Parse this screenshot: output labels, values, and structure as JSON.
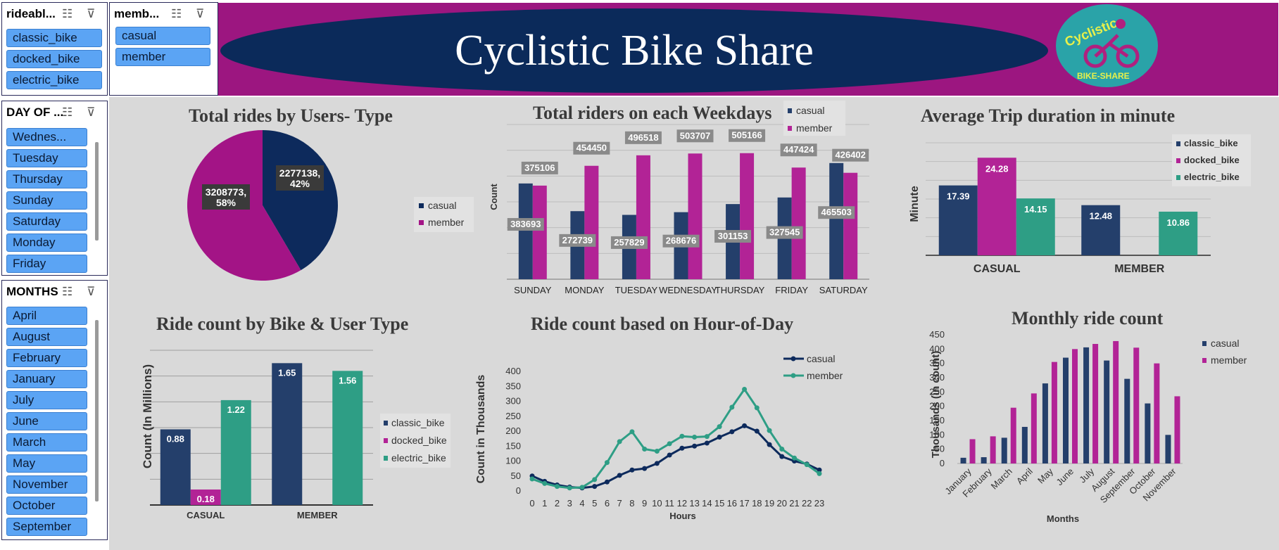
{
  "header": {
    "title": "Cyclistic Bike Share",
    "logo_top": "Cyclistic",
    "logo_bottom": "BIKE-SHARE"
  },
  "slicers": {
    "rideable": {
      "title": "rideabl...",
      "items": [
        "classic_bike",
        "docked_bike",
        "electric_bike"
      ]
    },
    "member": {
      "title": "memb...",
      "items": [
        "casual",
        "member"
      ]
    },
    "day": {
      "title": "DAY OF ...",
      "items": [
        "Wednes...",
        "Tuesday",
        "Thursday",
        "Sunday",
        "Saturday",
        "Monday",
        "Friday"
      ]
    },
    "months": {
      "title": "MONTHS",
      "items": [
        "April",
        "August",
        "February",
        "January",
        "July",
        "June",
        "March",
        "May",
        "November",
        "October",
        "September"
      ]
    }
  },
  "colors": {
    "navy": "#243f6b",
    "magenta": "#b22396",
    "teal": "#2e9e85"
  },
  "chart_data": [
    {
      "type": "pie",
      "title": "Total rides by Users- Type",
      "slices": [
        {
          "name": "casual",
          "value": 2277138,
          "label": "2277138, 42%"
        },
        {
          "name": "member",
          "value": 3208773,
          "label": "3208773, 58%"
        }
      ],
      "legend": [
        "casual",
        "member"
      ],
      "legend_position": "right"
    },
    {
      "type": "bar",
      "title": "Total riders on each Weekdays",
      "ylabel": "Count",
      "categories": [
        "SUNDAY",
        "MONDAY",
        "TUESDAY",
        "WEDNESDAY",
        "THURSDAY",
        "FRIDAY",
        "SATURDAY"
      ],
      "series": [
        {
          "name": "casual",
          "values": [
            383693,
            272739,
            257829,
            268676,
            301153,
            327545,
            465503
          ]
        },
        {
          "name": "member",
          "values": [
            375106,
            454450,
            496518,
            503707,
            505166,
            447424,
            426402
          ]
        }
      ],
      "legend_position": "top-right"
    },
    {
      "type": "bar",
      "title": "Average Trip duration in minute",
      "ylabel": "Minute",
      "categories": [
        "CASUAL",
        "MEMBER"
      ],
      "series": [
        {
          "name": "classic_bike",
          "values": [
            17.39,
            12.48
          ]
        },
        {
          "name": "docked_bike",
          "values": [
            24.28,
            null
          ]
        },
        {
          "name": "electric_bike",
          "values": [
            14.15,
            10.86
          ]
        }
      ],
      "legend_position": "top-right"
    },
    {
      "type": "bar",
      "title": "Ride count by Bike & User Type",
      "ylabel": "Count (In Millions)",
      "categories": [
        "CASUAL",
        "MEMBER"
      ],
      "series": [
        {
          "name": "classic_bike",
          "values": [
            0.88,
            1.65
          ]
        },
        {
          "name": "docked_bike",
          "values": [
            0.18,
            null
          ]
        },
        {
          "name": "electric_bike",
          "values": [
            1.22,
            1.56
          ]
        }
      ],
      "legend_position": "right"
    },
    {
      "type": "line",
      "title": "Ride count based on Hour-of-Day",
      "xlabel": "Hours",
      "ylabel": "Count in Thousands",
      "x": [
        0,
        1,
        2,
        3,
        4,
        5,
        6,
        7,
        8,
        9,
        10,
        11,
        12,
        13,
        14,
        15,
        16,
        17,
        18,
        19,
        20,
        21,
        22,
        23
      ],
      "series": [
        {
          "name": "casual",
          "values": [
            50,
            32,
            20,
            13,
            10,
            15,
            30,
            52,
            70,
            75,
            92,
            120,
            143,
            150,
            160,
            180,
            198,
            218,
            200,
            155,
            115,
            100,
            90,
            70
          ]
        },
        {
          "name": "member",
          "values": [
            40,
            25,
            15,
            10,
            12,
            38,
            95,
            165,
            198,
            140,
            133,
            158,
            183,
            180,
            182,
            215,
            280,
            340,
            278,
            202,
            140,
            110,
            88,
            58
          ]
        }
      ],
      "yticks": [
        "0",
        "50",
        "100",
        "150",
        "200",
        "250",
        "300",
        "350",
        "400"
      ],
      "ylim": [
        0,
        400
      ],
      "legend_position": "top-right"
    },
    {
      "type": "bar",
      "title": "Monthly ride count",
      "xlabel": "Months",
      "ylabel": "Thousands (in count)",
      "categories": [
        "January",
        "February",
        "March",
        "April",
        "May",
        "June",
        "July",
        "August",
        "September",
        "October",
        "November"
      ],
      "series": [
        {
          "name": "casual",
          "values": [
            20,
            22,
            90,
            128,
            280,
            370,
            406,
            360,
            296,
            210,
            100
          ]
        },
        {
          "name": "member",
          "values": [
            85,
            95,
            195,
            245,
            355,
            400,
            418,
            428,
            405,
            350,
            235
          ]
        }
      ],
      "yticks": [
        "0",
        "50",
        "100",
        "150",
        "200",
        "250",
        "300",
        "350",
        "400",
        "450"
      ],
      "ylim": [
        0,
        450
      ],
      "legend_position": "top-right"
    }
  ]
}
